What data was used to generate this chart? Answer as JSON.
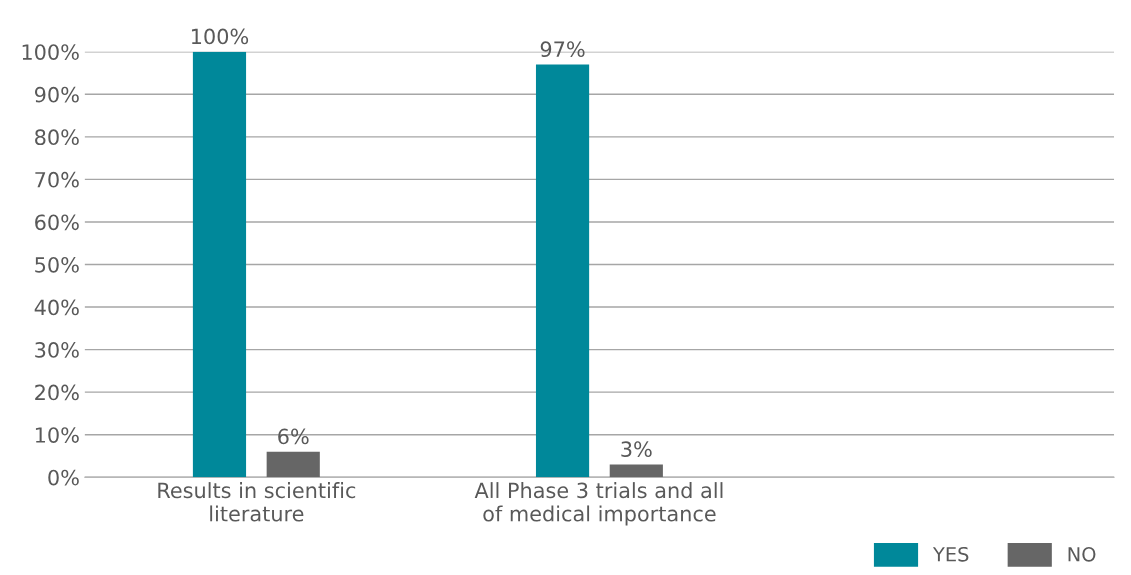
{
  "chart_data": {
    "type": "bar",
    "categories": [
      "Results in scientific\nliterature",
      "All Phase 3 trials and all\nof medical importance",
      null
    ],
    "series": [
      {
        "name": "YES",
        "color": "#00889a",
        "values": [
          100,
          97,
          null
        ],
        "value_labels": [
          "100%",
          "97%",
          null
        ]
      },
      {
        "name": "NO",
        "color": "#666666",
        "values": [
          6,
          3,
          null
        ],
        "value_labels": [
          "6%",
          "3%",
          null
        ]
      }
    ],
    "ylim": [
      0,
      100
    ],
    "yticks": [
      {
        "value": 0,
        "label": "0%"
      },
      {
        "value": 10,
        "label": "10%"
      },
      {
        "value": 20,
        "label": "20%"
      },
      {
        "value": 30,
        "label": "30%"
      },
      {
        "value": 40,
        "label": "40%"
      },
      {
        "value": 50,
        "label": "50%"
      },
      {
        "value": 60,
        "label": "60%"
      },
      {
        "value": 70,
        "label": "70%"
      },
      {
        "value": 80,
        "label": "80%"
      },
      {
        "value": 90,
        "label": "90%"
      },
      {
        "value": 100,
        "label": "100%"
      }
    ],
    "grid": "y",
    "legend": "bottom right"
  }
}
